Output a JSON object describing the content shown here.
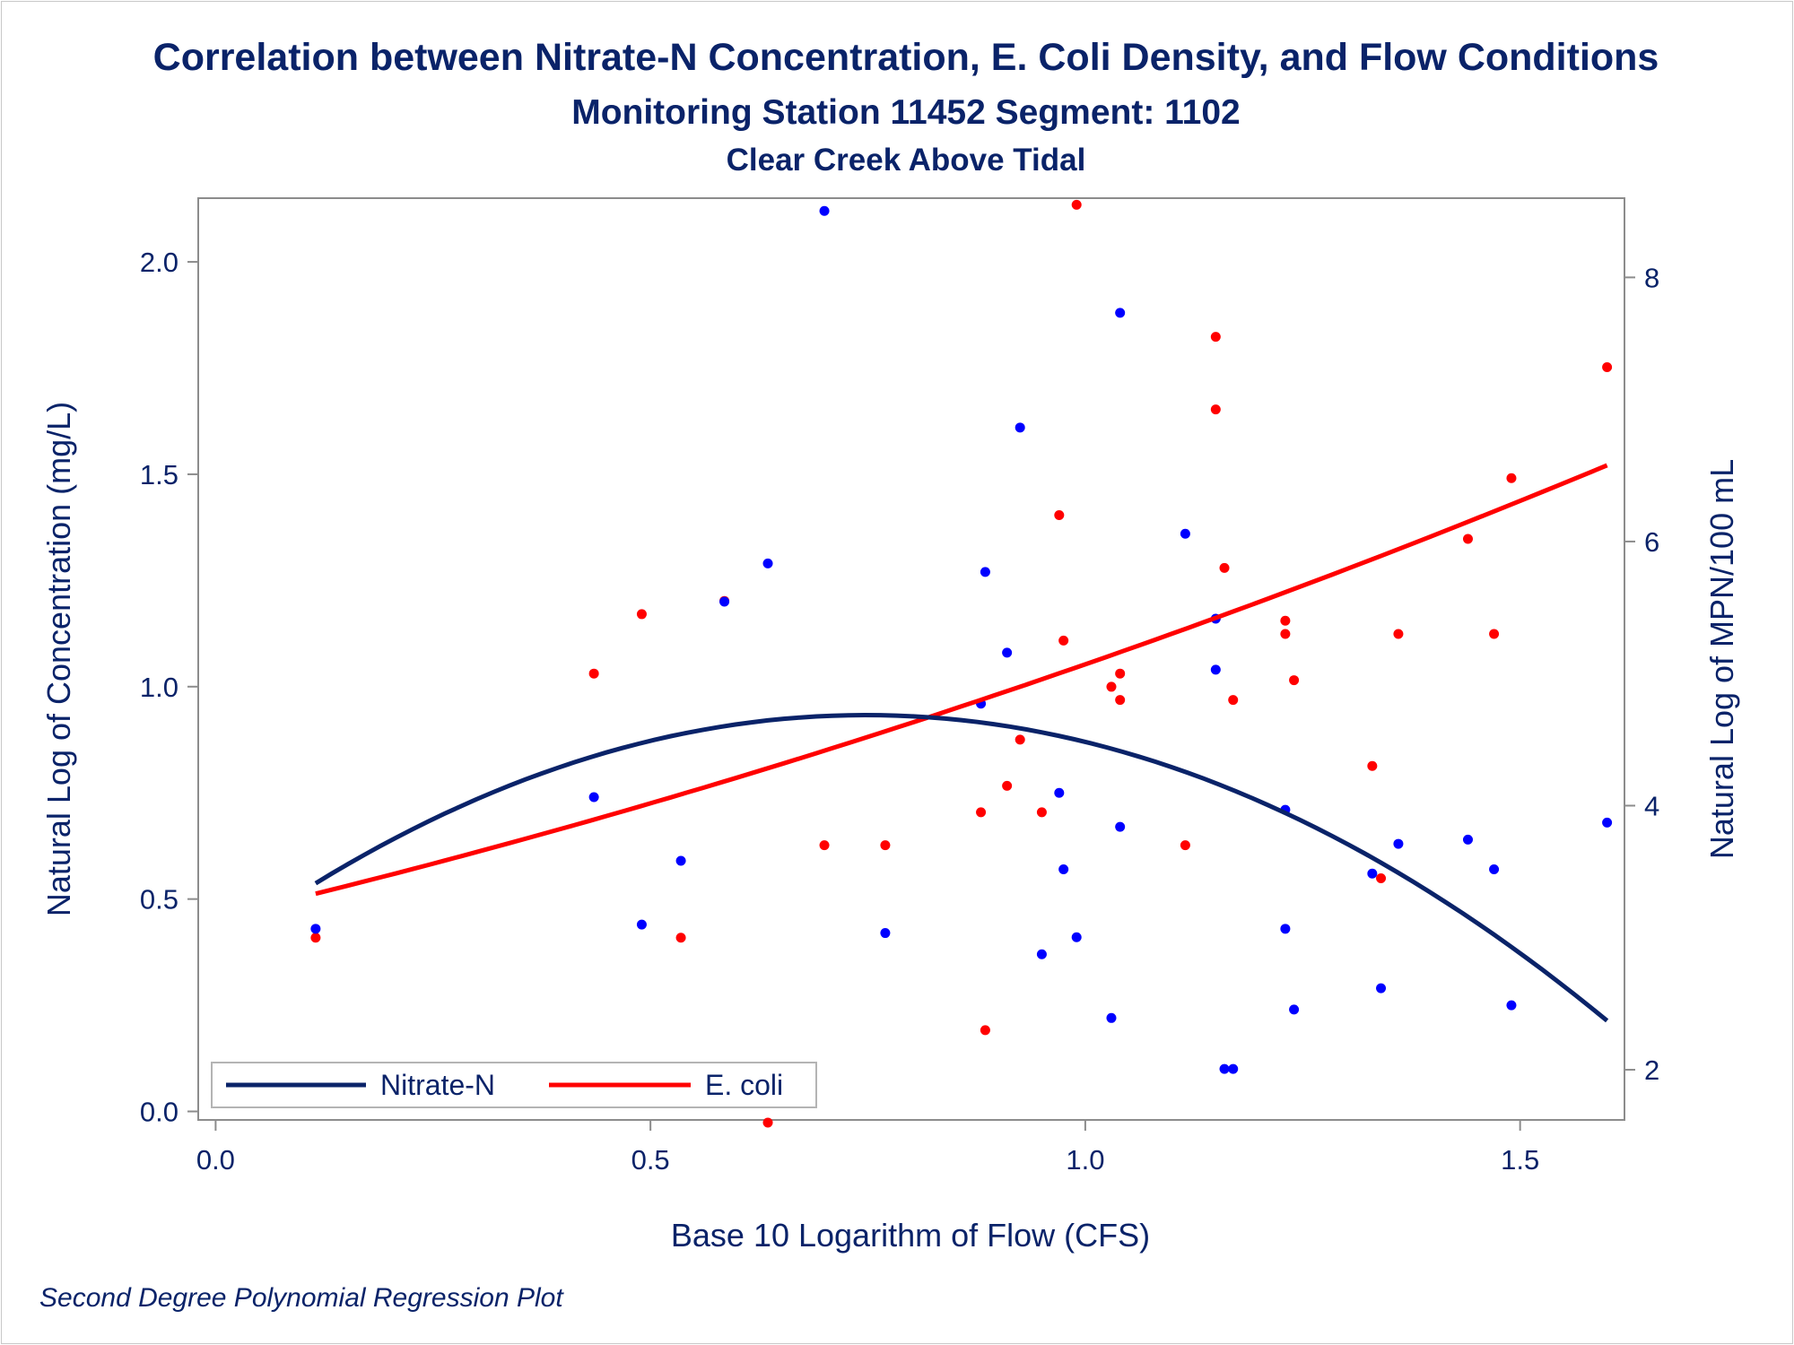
{
  "chart_data": {
    "type": "scatter",
    "title": "Correlation between Nitrate-N Concentration, E. Coli Density, and Flow Conditions",
    "subtitle": "Monitoring Station 11452 Segment: 1102",
    "subtitle2": "Clear Creek Above Tidal",
    "footnote": "Second Degree Polynomial Regression Plot",
    "xlabel": "Base 10 Logarithm of Flow (CFS)",
    "ylabel_left": "Natural Log of Concentration (mg/L)",
    "ylabel_right": "Natural Log of MPN/100 mL",
    "xlim": [
      -0.02,
      1.62
    ],
    "ylim_left": [
      -0.02,
      2.15
    ],
    "ylim_right": [
      1.62,
      8.6
    ],
    "x_ticks": [
      0.0,
      0.5,
      1.0,
      1.5
    ],
    "x_tick_labels": [
      "0.0",
      "0.5",
      "1.0",
      "1.5"
    ],
    "y_left_ticks": [
      0.0,
      0.5,
      1.0,
      1.5,
      2.0
    ],
    "y_left_tick_labels": [
      "0.0",
      "0.5",
      "1.0",
      "1.5",
      "2.0"
    ],
    "y_right_ticks": [
      2,
      4,
      6,
      8
    ],
    "y_right_tick_labels": [
      "2",
      "4",
      "6",
      "8"
    ],
    "legend_position": "bottom-left",
    "colors": {
      "nitrate": "#0a2369",
      "ecoli": "#ff0000",
      "nitrate_points": "#0000ff",
      "text": "#0a2369",
      "frame": "#8c8c8c"
    },
    "series": [
      {
        "name": "Nitrate-N",
        "axis": "left",
        "points": [
          [
            0.115,
            0.43
          ],
          [
            0.435,
            0.74
          ],
          [
            0.49,
            0.44
          ],
          [
            0.535,
            0.59
          ],
          [
            0.585,
            1.2
          ],
          [
            0.635,
            1.29
          ],
          [
            0.7,
            2.12
          ],
          [
            0.77,
            0.42
          ],
          [
            0.88,
            0.96
          ],
          [
            0.885,
            1.27
          ],
          [
            0.91,
            1.08
          ],
          [
            0.925,
            1.61
          ],
          [
            0.95,
            0.37
          ],
          [
            0.97,
            0.75
          ],
          [
            0.975,
            0.57
          ],
          [
            0.99,
            0.41
          ],
          [
            1.03,
            0.22
          ],
          [
            1.04,
            1.88
          ],
          [
            1.04,
            0.67
          ],
          [
            1.115,
            1.36
          ],
          [
            1.15,
            1.16
          ],
          [
            1.15,
            1.04
          ],
          [
            1.16,
            0.1
          ],
          [
            1.17,
            0.1
          ],
          [
            1.23,
            0.71
          ],
          [
            1.23,
            0.43
          ],
          [
            1.24,
            0.24
          ],
          [
            1.33,
            0.56
          ],
          [
            1.34,
            0.29
          ],
          [
            1.36,
            0.63
          ],
          [
            1.44,
            0.64
          ],
          [
            1.47,
            0.57
          ],
          [
            1.49,
            0.25
          ],
          [
            1.6,
            0.68
          ]
        ],
        "fit_coefficients": [
          0.38,
          1.48,
          -0.99
        ],
        "fit_range": [
          0.115,
          1.6
        ]
      },
      {
        "name": "E. coli",
        "axis": "right",
        "points": [
          [
            0.115,
            3.0
          ],
          [
            0.435,
            5.0
          ],
          [
            0.49,
            5.45
          ],
          [
            0.535,
            3.0
          ],
          [
            0.585,
            5.55
          ],
          [
            0.635,
            1.6
          ],
          [
            0.7,
            3.7
          ],
          [
            0.77,
            3.7
          ],
          [
            0.88,
            3.95
          ],
          [
            0.885,
            2.3
          ],
          [
            0.91,
            4.15
          ],
          [
            0.925,
            4.5
          ],
          [
            0.95,
            3.95
          ],
          [
            0.97,
            6.2
          ],
          [
            0.975,
            5.25
          ],
          [
            0.99,
            8.55
          ],
          [
            1.03,
            4.9
          ],
          [
            1.04,
            5.0
          ],
          [
            1.04,
            4.8
          ],
          [
            1.115,
            3.7
          ],
          [
            1.15,
            7.55
          ],
          [
            1.15,
            7.0
          ],
          [
            1.16,
            5.8
          ],
          [
            1.17,
            4.8
          ],
          [
            1.23,
            5.4
          ],
          [
            1.23,
            5.3
          ],
          [
            1.24,
            4.95
          ],
          [
            1.33,
            4.3
          ],
          [
            1.34,
            3.45
          ],
          [
            1.36,
            5.3
          ],
          [
            1.44,
            6.02
          ],
          [
            1.47,
            5.3
          ],
          [
            1.49,
            6.48
          ],
          [
            1.6,
            7.32
          ]
        ],
        "fit_coefficients": [
          3.15,
          1.55,
          0.37
        ],
        "fit_range": [
          0.115,
          1.6
        ]
      }
    ]
  }
}
